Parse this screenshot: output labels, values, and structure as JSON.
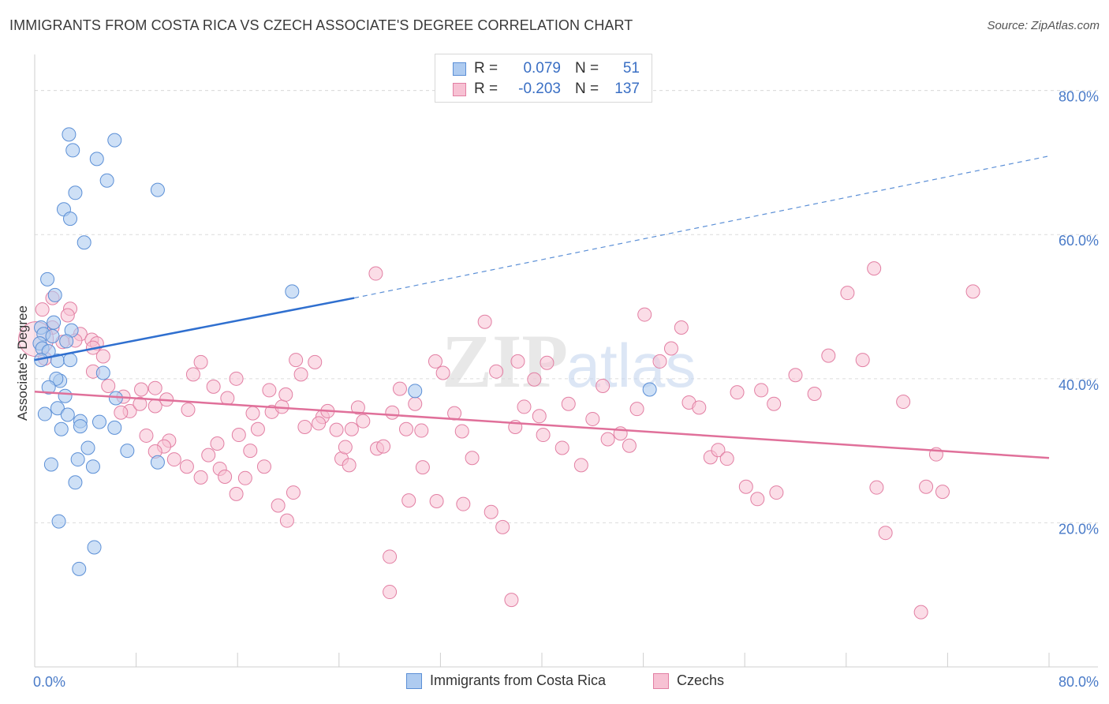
{
  "title": "IMMIGRANTS FROM COSTA RICA VS CZECH ASSOCIATE'S DEGREE CORRELATION CHART",
  "source": "Source: ZipAtlas.com",
  "watermark": {
    "zip": "ZIP",
    "atlas": "atlas"
  },
  "legend": {
    "rows": [
      {
        "r_label": "R =",
        "r_value": "0.079",
        "n_label": "N =",
        "n_value": "51"
      },
      {
        "r_label": "R =",
        "r_value": "-0.203",
        "n_label": "N =",
        "n_value": "137"
      }
    ]
  },
  "bottom_legend": {
    "series_1": "Immigrants from Costa Rica",
    "series_2": "Czechs"
  },
  "colors": {
    "blue_fill": "#aecbf0",
    "blue_stroke": "#5b8fd6",
    "blue_line": "#2f6fcf",
    "pink_fill": "#f7c1d3",
    "pink_stroke": "#e27fa3",
    "pink_line": "#e0709a",
    "axis_text": "#4a7bc8",
    "grid": "#dcdcdc"
  },
  "chart_data": {
    "type": "scatter",
    "title": "IMMIGRANTS FROM COSTA RICA VS CZECH ASSOCIATE'S DEGREE CORRELATION CHART",
    "xlabel": "",
    "ylabel": "Associate's Degree",
    "xlim": [
      0,
      80
    ],
    "ylim": [
      0,
      85
    ],
    "x_tick_labels": {
      "left": "0.0%",
      "right": "80.0%"
    },
    "y_ticks": [
      {
        "value": 20,
        "label": "20.0%"
      },
      {
        "value": 40,
        "label": "40.0%"
      },
      {
        "value": 60,
        "label": "60.0%"
      },
      {
        "value": 80,
        "label": "80.0%"
      }
    ],
    "series": [
      {
        "name": "Immigrants from Costa Rica",
        "r": 0.079,
        "n": 51,
        "trend": {
          "solid": [
            [
              0,
              42.6
            ],
            [
              25.2,
              51.2
            ]
          ],
          "dashed": [
            [
              25.2,
              51.2
            ],
            [
              80,
              70.9
            ]
          ]
        },
        "points": [
          [
            2.7,
            73.9
          ],
          [
            6.3,
            73.1
          ],
          [
            3.0,
            71.7
          ],
          [
            4.9,
            70.5
          ],
          [
            5.7,
            67.5
          ],
          [
            9.7,
            66.2
          ],
          [
            3.2,
            65.8
          ],
          [
            2.3,
            63.5
          ],
          [
            2.8,
            62.2
          ],
          [
            3.9,
            58.9
          ],
          [
            1.0,
            53.8
          ],
          [
            1.6,
            51.6
          ],
          [
            20.3,
            52.1
          ],
          [
            1.5,
            47.8
          ],
          [
            0.5,
            47.1
          ],
          [
            2.9,
            46.7
          ],
          [
            0.7,
            46.2
          ],
          [
            1.4,
            45.9
          ],
          [
            0.4,
            44.9
          ],
          [
            2.5,
            45.2
          ],
          [
            0.6,
            44.2
          ],
          [
            1.1,
            43.8
          ],
          [
            0.5,
            42.6
          ],
          [
            1.8,
            42.5
          ],
          [
            2.8,
            42.6
          ],
          [
            5.4,
            40.8
          ],
          [
            2.0,
            39.7
          ],
          [
            1.7,
            40.0
          ],
          [
            1.1,
            38.8
          ],
          [
            6.4,
            37.3
          ],
          [
            2.4,
            37.6
          ],
          [
            1.8,
            35.9
          ],
          [
            2.6,
            35.0
          ],
          [
            0.8,
            35.1
          ],
          [
            3.6,
            34.1
          ],
          [
            5.1,
            34.0
          ],
          [
            3.6,
            33.4
          ],
          [
            2.1,
            33.0
          ],
          [
            6.3,
            33.2
          ],
          [
            4.2,
            30.4
          ],
          [
            7.3,
            30.0
          ],
          [
            3.4,
            28.8
          ],
          [
            1.3,
            28.1
          ],
          [
            4.6,
            27.8
          ],
          [
            9.7,
            28.4
          ],
          [
            3.2,
            25.6
          ],
          [
            1.9,
            20.2
          ],
          [
            4.7,
            16.6
          ],
          [
            3.5,
            13.6
          ],
          [
            30.0,
            38.3
          ],
          [
            48.5,
            38.5
          ]
        ]
      },
      {
        "name": "Czechs",
        "r": -0.203,
        "n": 137,
        "trend": {
          "solid": [
            [
              0,
              38.2
            ],
            [
              80,
              29.0
            ]
          ]
        },
        "points": [
          [
            0.6,
            49.6
          ],
          [
            1.4,
            51.2
          ],
          [
            2.8,
            49.7
          ],
          [
            2.6,
            48.8
          ],
          [
            1.4,
            47.1
          ],
          [
            3.6,
            46.2
          ],
          [
            4.5,
            45.4
          ],
          [
            2.2,
            45.1
          ],
          [
            3.2,
            45.3
          ],
          [
            4.9,
            44.9
          ],
          [
            4.6,
            44.3
          ],
          [
            5.4,
            43.1
          ],
          [
            0.8,
            42.8
          ],
          [
            4.6,
            41.0
          ],
          [
            5.8,
            39.0
          ],
          [
            8.4,
            38.5
          ],
          [
            9.5,
            38.7
          ],
          [
            7.0,
            37.5
          ],
          [
            7.5,
            35.5
          ],
          [
            6.8,
            35.3
          ],
          [
            8.3,
            36.5
          ],
          [
            9.5,
            36.2
          ],
          [
            10.4,
            37.1
          ],
          [
            10.6,
            31.4
          ],
          [
            12.1,
            35.7
          ],
          [
            12.5,
            40.6
          ],
          [
            13.1,
            42.3
          ],
          [
            14.1,
            38.9
          ],
          [
            15.2,
            37.3
          ],
          [
            15.9,
            40.0
          ],
          [
            17.2,
            35.2
          ],
          [
            17.6,
            33.0
          ],
          [
            18.7,
            35.4
          ],
          [
            19.5,
            36.1
          ],
          [
            19.8,
            37.8
          ],
          [
            18.5,
            38.4
          ],
          [
            20.6,
            42.6
          ],
          [
            21.0,
            40.6
          ],
          [
            22.1,
            42.3
          ],
          [
            21.3,
            33.3
          ],
          [
            22.7,
            34.7
          ],
          [
            23.1,
            35.5
          ],
          [
            23.8,
            32.9
          ],
          [
            22.4,
            33.8
          ],
          [
            24.2,
            28.9
          ],
          [
            24.5,
            30.5
          ],
          [
            24.8,
            28.0
          ],
          [
            25.5,
            36.0
          ],
          [
            25.9,
            34.1
          ],
          [
            25.0,
            33.0
          ],
          [
            27.0,
            30.3
          ],
          [
            27.5,
            30.6
          ],
          [
            28.2,
            35.3
          ],
          [
            28.8,
            38.6
          ],
          [
            29.3,
            33.0
          ],
          [
            30.0,
            36.5
          ],
          [
            30.5,
            32.8
          ],
          [
            31.6,
            42.4
          ],
          [
            32.2,
            40.8
          ],
          [
            33.1,
            35.2
          ],
          [
            33.7,
            32.7
          ],
          [
            34.5,
            29.0
          ],
          [
            35.5,
            47.9
          ],
          [
            36.4,
            41.0
          ],
          [
            37.9,
            33.3
          ],
          [
            38.6,
            36.1
          ],
          [
            38.1,
            42.4
          ],
          [
            39.4,
            39.9
          ],
          [
            40.4,
            42.2
          ],
          [
            39.8,
            34.8
          ],
          [
            40.1,
            32.2
          ],
          [
            41.6,
            30.4
          ],
          [
            42.1,
            36.5
          ],
          [
            43.1,
            28.0
          ],
          [
            44.0,
            34.4
          ],
          [
            44.8,
            39.0
          ],
          [
            45.2,
            31.6
          ],
          [
            46.2,
            32.4
          ],
          [
            46.9,
            30.7
          ],
          [
            47.5,
            35.8
          ],
          [
            48.1,
            48.9
          ],
          [
            49.3,
            42.4
          ],
          [
            50.2,
            44.2
          ],
          [
            51.0,
            47.1
          ],
          [
            51.6,
            36.7
          ],
          [
            52.4,
            36.0
          ],
          [
            53.3,
            29.1
          ],
          [
            53.9,
            30.1
          ],
          [
            54.6,
            28.9
          ],
          [
            55.4,
            38.1
          ],
          [
            56.1,
            25.0
          ],
          [
            57.0,
            23.3
          ],
          [
            57.3,
            38.4
          ],
          [
            58.3,
            36.5
          ],
          [
            58.5,
            24.2
          ],
          [
            60.0,
            40.5
          ],
          [
            61.5,
            37.9
          ],
          [
            62.6,
            43.2
          ],
          [
            64.1,
            51.9
          ],
          [
            65.3,
            42.6
          ],
          [
            66.4,
            24.9
          ],
          [
            67.1,
            18.6
          ],
          [
            68.5,
            36.8
          ],
          [
            69.9,
            7.6
          ],
          [
            70.3,
            25.0
          ],
          [
            71.1,
            29.5
          ],
          [
            71.6,
            24.3
          ],
          [
            66.2,
            55.3
          ],
          [
            74.0,
            52.1
          ],
          [
            33.8,
            22.6
          ],
          [
            31.7,
            23.0
          ],
          [
            36.0,
            21.5
          ],
          [
            36.9,
            19.4
          ],
          [
            28.0,
            15.3
          ],
          [
            28.0,
            10.4
          ],
          [
            37.6,
            9.3
          ],
          [
            15.9,
            24.0
          ],
          [
            19.2,
            22.4
          ],
          [
            20.4,
            24.2
          ],
          [
            18.1,
            27.8
          ],
          [
            17.0,
            30.0
          ],
          [
            16.1,
            32.2
          ],
          [
            14.4,
            31.0
          ],
          [
            12.0,
            27.8
          ],
          [
            11.0,
            28.8
          ],
          [
            10.2,
            30.6
          ],
          [
            9.5,
            29.9
          ],
          [
            8.8,
            32.1
          ],
          [
            13.7,
            29.4
          ],
          [
            14.6,
            27.5
          ],
          [
            13.1,
            26.3
          ],
          [
            15.0,
            26.4
          ],
          [
            16.6,
            26.2
          ],
          [
            19.9,
            20.3
          ],
          [
            29.5,
            23.1
          ],
          [
            30.6,
            27.7
          ],
          [
            26.9,
            54.6
          ]
        ]
      }
    ]
  }
}
